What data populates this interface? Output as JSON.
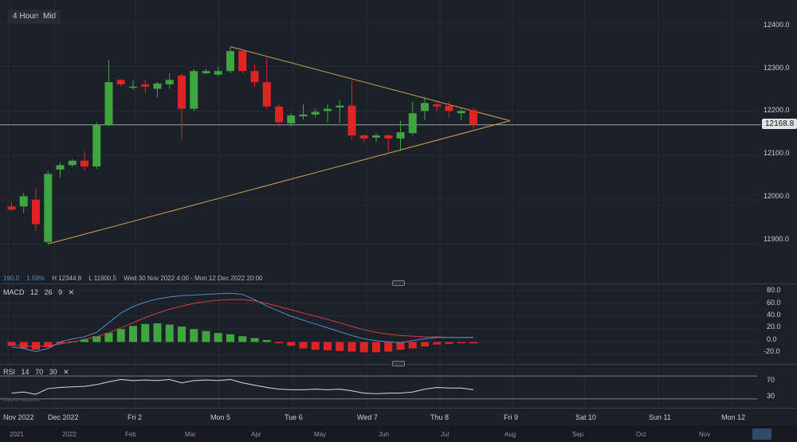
{
  "toolbar": {
    "timeframe": "4 Hours",
    "price_type": "Mid"
  },
  "chart_data": [
    {
      "type": "candlestick",
      "y_ticks": [
        "12400.0",
        "12300.0",
        "12200.0",
        "12100.0",
        "12000.0",
        "11900.0"
      ],
      "ylim": [
        11840,
        12450
      ],
      "last_price": "12168.8",
      "last_value": 12168.8,
      "info": {
        "change": "190.0",
        "change_pct": "1.59%",
        "high": "H 12344.8",
        "low": "L 11900.5",
        "range": "Wed 30 Nov 2022 4:00 - Mon 12 Dec 2022 20:00"
      },
      "candles": [
        {
          "o": 11985,
          "h": 11995,
          "l": 11975,
          "c": 11978
        },
        {
          "o": 11985,
          "h": 12015,
          "l": 11970,
          "c": 12008
        },
        {
          "o": 12000,
          "h": 12025,
          "l": 11930,
          "c": 11945
        },
        {
          "o": 11905,
          "h": 12065,
          "l": 11900.5,
          "c": 12058
        },
        {
          "o": 12068,
          "h": 12085,
          "l": 12050,
          "c": 12078
        },
        {
          "o": 12078,
          "h": 12092,
          "l": 12074,
          "c": 12088
        },
        {
          "o": 12088,
          "h": 12110,
          "l": 12065,
          "c": 12075
        },
        {
          "o": 12075,
          "h": 12175,
          "l": 12070,
          "c": 12168
        },
        {
          "o": 12168,
          "h": 12315,
          "l": 12165,
          "c": 12265
        },
        {
          "o": 12270,
          "h": 12272,
          "l": 12255,
          "c": 12260
        },
        {
          "o": 12255,
          "h": 12270,
          "l": 12248,
          "c": 12255
        },
        {
          "o": 12260,
          "h": 12270,
          "l": 12240,
          "c": 12255
        },
        {
          "o": 12250,
          "h": 12265,
          "l": 12230,
          "c": 12262
        },
        {
          "o": 12260,
          "h": 12285,
          "l": 12250,
          "c": 12270
        },
        {
          "o": 12280,
          "h": 12285,
          "l": 12135,
          "c": 12205
        },
        {
          "o": 12205,
          "h": 12295,
          "l": 12200,
          "c": 12290
        },
        {
          "o": 12285,
          "h": 12295,
          "l": 12282,
          "c": 12290
        },
        {
          "o": 12282,
          "h": 12300,
          "l": 12278,
          "c": 12290
        },
        {
          "o": 12290,
          "h": 12344.8,
          "l": 12285,
          "c": 12335
        },
        {
          "o": 12335,
          "h": 12340,
          "l": 12285,
          "c": 12290
        },
        {
          "o": 12290,
          "h": 12305,
          "l": 12255,
          "c": 12265
        },
        {
          "o": 12265,
          "h": 12320,
          "l": 12205,
          "c": 12210
        },
        {
          "o": 12210,
          "h": 12215,
          "l": 12165,
          "c": 12175
        },
        {
          "o": 12172,
          "h": 12195,
          "l": 12165,
          "c": 12190
        },
        {
          "o": 12188,
          "h": 12215,
          "l": 12180,
          "c": 12192
        },
        {
          "o": 12192,
          "h": 12205,
          "l": 12185,
          "c": 12198
        },
        {
          "o": 12200,
          "h": 12215,
          "l": 12175,
          "c": 12205
        },
        {
          "o": 12208,
          "h": 12225,
          "l": 12172,
          "c": 12212
        },
        {
          "o": 12212,
          "h": 12268,
          "l": 12135,
          "c": 12145
        },
        {
          "o": 12145,
          "h": 12148,
          "l": 12130,
          "c": 12138
        },
        {
          "o": 12140,
          "h": 12150,
          "l": 12130,
          "c": 12145
        },
        {
          "o": 12145,
          "h": 12148,
          "l": 12108,
          "c": 12138
        },
        {
          "o": 12138,
          "h": 12178,
          "l": 12110,
          "c": 12152
        },
        {
          "o": 12150,
          "h": 12220,
          "l": 12145,
          "c": 12195
        },
        {
          "o": 12200,
          "h": 12232,
          "l": 12180,
          "c": 12218
        },
        {
          "o": 12215,
          "h": 12220,
          "l": 12200,
          "c": 12210
        },
        {
          "o": 12212,
          "h": 12220,
          "l": 12185,
          "c": 12200
        },
        {
          "o": 12195,
          "h": 12205,
          "l": 12180,
          "c": 12200
        },
        {
          "o": 12202,
          "h": 12208,
          "l": 12160,
          "c": 12168.8
        }
      ],
      "triangle": {
        "upper": [
          [
            18,
            12344.8
          ],
          [
            38,
            12178
          ]
        ],
        "lower": [
          [
            3,
            11900.5
          ],
          [
            38,
            12178
          ]
        ]
      }
    },
    {
      "type": "macd",
      "params": [
        "12",
        "26",
        "9"
      ],
      "label": "MACD",
      "y_ticks": [
        "80.0",
        "60.0",
        "40.0",
        "20.0",
        "0.0",
        "-20.0"
      ],
      "ylim": [
        -28,
        86
      ],
      "histogram": [
        -6,
        -10,
        -12,
        -8,
        -2,
        1,
        4,
        9,
        14,
        20,
        25,
        28,
        29,
        27,
        24,
        20,
        17,
        14,
        12,
        9,
        6,
        3,
        -2,
        -6,
        -10,
        -12,
        -13,
        -14,
        -15,
        -16,
        -16,
        -15,
        -12,
        -10,
        -7,
        -4,
        -3,
        -2,
        -2
      ],
      "macd": [
        -8,
        -10,
        -15,
        -10,
        0,
        5,
        8,
        15,
        30,
        45,
        55,
        62,
        67,
        70,
        72,
        73,
        74,
        75,
        76,
        74,
        66,
        56,
        48,
        40,
        34,
        28,
        22,
        16,
        10,
        5,
        2,
        0,
        -1,
        2,
        5,
        7,
        7,
        7,
        7
      ],
      "signal": [
        -5,
        -6,
        -7,
        -6,
        -3,
        0,
        4,
        8,
        14,
        22,
        30,
        38,
        45,
        51,
        56,
        60,
        63,
        65,
        66,
        66,
        64,
        60,
        55,
        50,
        45,
        40,
        35,
        30,
        24,
        19,
        15,
        12,
        10,
        9,
        8,
        8,
        7,
        7,
        7
      ]
    },
    {
      "type": "rsi",
      "params": [
        "14",
        "70",
        "30"
      ],
      "label": "RSI",
      "y_ticks": [
        "70",
        "30"
      ],
      "ylim": [
        20,
        80
      ],
      "values": [
        40,
        42,
        38,
        48,
        50,
        51,
        52,
        55,
        60,
        64,
        62,
        63,
        62,
        64,
        58,
        62,
        63,
        62,
        64,
        58,
        54,
        50,
        47,
        46,
        46,
        47,
        46,
        47,
        44,
        40,
        39,
        40,
        40,
        42,
        47,
        50,
        49,
        49,
        46
      ]
    }
  ],
  "x_axis": [
    "Nov 2022",
    "Dec 2022",
    "Fri 2",
    "Mon 5",
    "Tue 6",
    "Wed 7",
    "Thu 8",
    "Fri 9",
    "Sat 10",
    "Sun 11",
    "Mon 12"
  ],
  "navigator": [
    "2021",
    "2022",
    "Feb",
    "Mar",
    "Apr",
    "May",
    "Jun",
    "Jul",
    "Aug",
    "Sep",
    "Oct",
    "Nov"
  ],
  "watermark": "Data is indicative",
  "colors": {
    "up": "#3fa53f",
    "down": "#e02424",
    "macd_line": "#4a90c8",
    "signal_line": "#d04040",
    "rsi_line": "#d8d8d8",
    "triangle": "#c9a24a"
  }
}
